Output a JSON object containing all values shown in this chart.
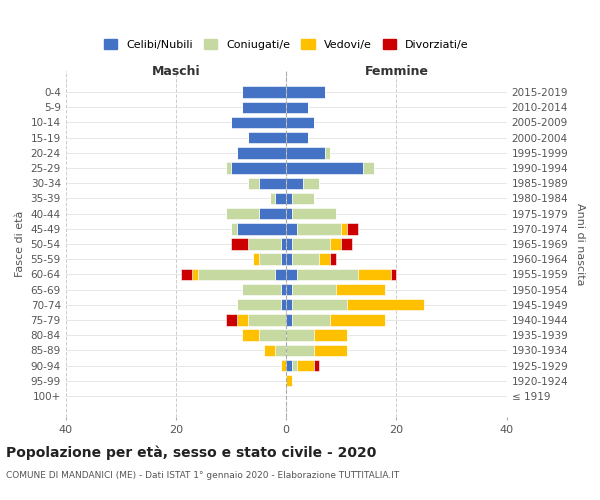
{
  "age_groups": [
    "0-4",
    "5-9",
    "10-14",
    "15-19",
    "20-24",
    "25-29",
    "30-34",
    "35-39",
    "40-44",
    "45-49",
    "50-54",
    "55-59",
    "60-64",
    "65-69",
    "70-74",
    "75-79",
    "80-84",
    "85-89",
    "90-94",
    "95-99",
    "100+"
  ],
  "birth_years": [
    "2015-2019",
    "2010-2014",
    "2005-2009",
    "2000-2004",
    "1995-1999",
    "1990-1994",
    "1985-1989",
    "1980-1984",
    "1975-1979",
    "1970-1974",
    "1965-1969",
    "1960-1964",
    "1955-1959",
    "1950-1954",
    "1945-1949",
    "1940-1944",
    "1935-1939",
    "1930-1934",
    "1925-1929",
    "1920-1924",
    "≤ 1919"
  ],
  "colors": {
    "celibi": "#4472c4",
    "coniugati": "#c6d9a0",
    "vedovi": "#ffc000",
    "divorziati": "#cc0000"
  },
  "males": {
    "celibi": [
      8,
      8,
      10,
      7,
      9,
      10,
      5,
      2,
      5,
      9,
      1,
      1,
      2,
      1,
      1,
      0,
      0,
      0,
      0,
      0,
      0
    ],
    "coniugati": [
      0,
      0,
      0,
      0,
      0,
      1,
      2,
      1,
      6,
      1,
      6,
      4,
      14,
      7,
      8,
      7,
      5,
      2,
      0,
      0,
      0
    ],
    "vedovi": [
      0,
      0,
      0,
      0,
      0,
      0,
      0,
      0,
      0,
      0,
      0,
      1,
      1,
      0,
      0,
      2,
      3,
      2,
      1,
      0,
      0
    ],
    "divorziati": [
      0,
      0,
      0,
      0,
      0,
      0,
      0,
      0,
      0,
      0,
      3,
      0,
      2,
      0,
      0,
      2,
      0,
      0,
      0,
      0,
      0
    ]
  },
  "females": {
    "celibi": [
      7,
      4,
      5,
      4,
      7,
      14,
      3,
      1,
      1,
      2,
      1,
      1,
      2,
      1,
      1,
      1,
      0,
      0,
      1,
      0,
      0
    ],
    "coniugati": [
      0,
      0,
      0,
      0,
      1,
      2,
      3,
      4,
      8,
      8,
      7,
      5,
      11,
      8,
      10,
      7,
      5,
      5,
      1,
      0,
      0
    ],
    "vedovi": [
      0,
      0,
      0,
      0,
      0,
      0,
      0,
      0,
      0,
      1,
      2,
      2,
      6,
      9,
      14,
      10,
      6,
      6,
      3,
      1,
      0
    ],
    "divorziati": [
      0,
      0,
      0,
      0,
      0,
      0,
      0,
      0,
      0,
      2,
      2,
      1,
      1,
      0,
      0,
      0,
      0,
      0,
      1,
      0,
      0
    ]
  },
  "title": "Popolazione per età, sesso e stato civile - 2020",
  "subtitle": "COMUNE DI MANDANICI (ME) - Dati ISTAT 1° gennaio 2020 - Elaborazione TUTTITALIA.IT",
  "xlabel_left": "Maschi",
  "xlabel_right": "Femmine",
  "ylabel_left": "Fasce di età",
  "ylabel_right": "Anni di nascita",
  "xlim": [
    -40,
    40
  ],
  "legend_labels": [
    "Celibi/Nubili",
    "Coniugati/e",
    "Vedovi/e",
    "Divorziati/e"
  ]
}
